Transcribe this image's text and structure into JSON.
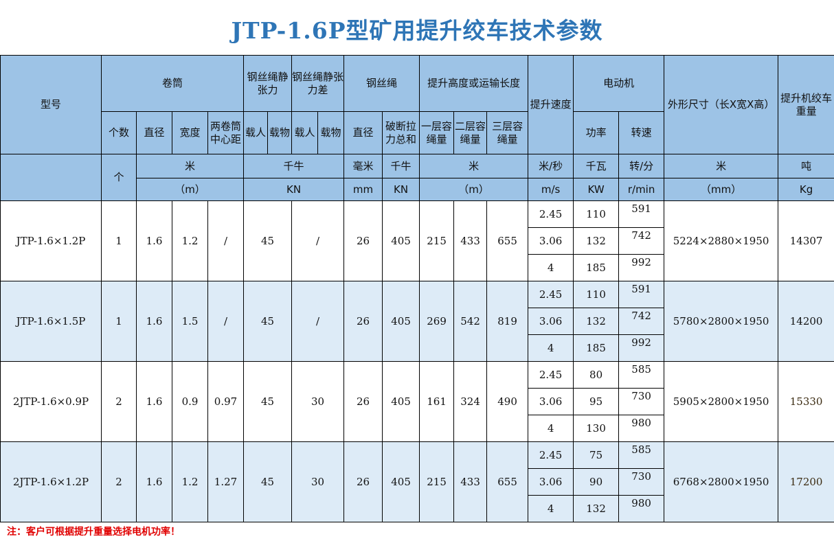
{
  "title": "JTP-1.6P型矿用提升绞车技术参数",
  "header": {
    "model": "型号",
    "drum": "卷筒",
    "static_tension": "钢丝绳静张力",
    "static_tension_diff": "钢丝绳静张力差",
    "rope": "钢丝绳",
    "lift_height": "提升高度或运输长度",
    "speed": "提升速度",
    "motor": "电动机",
    "dimensions": "外形尺寸（长X宽X高）",
    "weight": "提升机绞车重量",
    "count": "个数",
    "diameter": "直径",
    "width": "宽度",
    "center_distance": "两卷筒中心距",
    "people": "载人",
    "goods": "载物",
    "people2": "载人",
    "goods2": "载物",
    "rope_diameter": "直径",
    "breaking_force": "破断拉力总和",
    "layer1": "一层容绳量",
    "layer2": "二层容绳量",
    "layer3": "三层容绳量",
    "power": "功率",
    "rpm": "转速"
  },
  "units_cn": {
    "count": "个",
    "drum": "米",
    "tension": "千牛",
    "rope_d": "毫米",
    "rope_f": "千牛",
    "height": "米",
    "speed": "米/秒",
    "power": "千瓦",
    "rpm": "转/分",
    "dim": "米",
    "weight": "吨"
  },
  "units_en": {
    "drum": "（m）",
    "tension": "KN",
    "rope_d": "mm",
    "rope_f": "KN",
    "height": "（m）",
    "speed": "m/s",
    "power": "KW",
    "rpm": "r/min",
    "dim": "（mm）",
    "weight": "Kg"
  },
  "rows": [
    {
      "model": "JTP-1.6×1.2P",
      "count": "1",
      "diameter": "1.6",
      "width": "1.2",
      "center": "/",
      "tension": "45",
      "tension_diff": "/",
      "rope_d": "26",
      "rope_f": "405",
      "l1": "215",
      "l2": "433",
      "l3": "655",
      "speeds": [
        "2.45",
        "3.06",
        "4"
      ],
      "powers": [
        "110",
        "132",
        "185"
      ],
      "rpms": [
        "591",
        "742",
        "992"
      ],
      "dims": "5224×2880×1950",
      "weight": "14307"
    },
    {
      "model": "JTP-1.6×1.5P",
      "count": "1",
      "diameter": "1.6",
      "width": "1.5",
      "center": "/",
      "tension": "45",
      "tension_diff": "/",
      "rope_d": "26",
      "rope_f": "405",
      "l1": "269",
      "l2": "542",
      "l3": "819",
      "speeds": [
        "2.45",
        "3.06",
        "4"
      ],
      "powers": [
        "110",
        "132",
        "185"
      ],
      "rpms": [
        "591",
        "742",
        "992"
      ],
      "dims": "5780×2800×1950",
      "weight": "14200"
    },
    {
      "model": "2JTP-1.6×0.9P",
      "count": "2",
      "diameter": "1.6",
      "width": "0.9",
      "center": "0.97",
      "tension": "45",
      "tension_diff": "30",
      "rope_d": "26",
      "rope_f": "405",
      "l1": "161",
      "l2": "324",
      "l3": "490",
      "speeds": [
        "2.45",
        "3.06",
        "4"
      ],
      "powers": [
        "80",
        "95",
        "130"
      ],
      "rpms": [
        "585",
        "730",
        "980"
      ],
      "dims": "5905×2800×1950",
      "weight": "15330"
    },
    {
      "model": "2JTP-1.6×1.2P",
      "count": "2",
      "diameter": "1.6",
      "width": "1.2",
      "center": "1.27",
      "tension": "45",
      "tension_diff": "30",
      "rope_d": "26",
      "rope_f": "405",
      "l1": "215",
      "l2": "433",
      "l3": "655",
      "speeds": [
        "2.45",
        "3.06",
        "4"
      ],
      "powers": [
        "75",
        "90",
        "132"
      ],
      "rpms": [
        "585",
        "730",
        "980"
      ],
      "dims": "6768×2800×1950",
      "weight": "17200"
    }
  ],
  "note": "注：客户可根据提升重量选择电机功率！"
}
